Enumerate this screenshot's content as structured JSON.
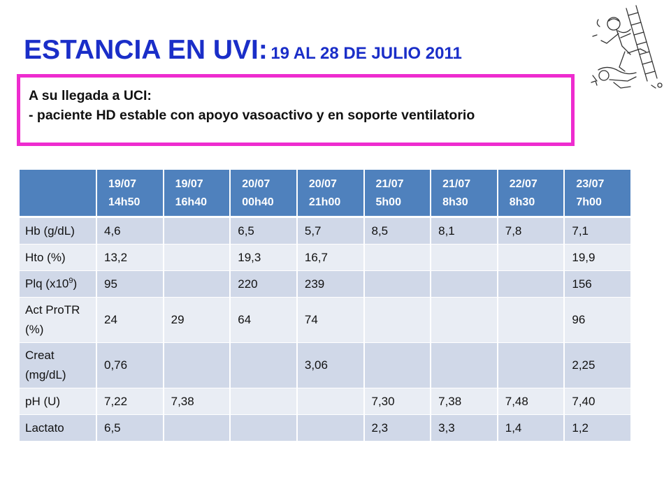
{
  "title": {
    "main": "ESTANCIA EN UVI:",
    "sub": "19 AL 28 DE JULIO 2011"
  },
  "cartoon_icon": "man-falling-off-ladder-illustration",
  "colors": {
    "title": "#1a2ec8",
    "box_border": "#ee2ccf",
    "header_bg": "#4f81bd",
    "row_dark": "#d0d8e8",
    "row_light": "#e9edf4"
  },
  "arrival_box": {
    "line1": "A su llegada a UCI:",
    "line2": "- paciente HD estable con apoyo vasoactivo y en soporte ventilatorio"
  },
  "table": {
    "columns": [
      {
        "date": "19/07",
        "time": "14h50"
      },
      {
        "date": "19/07",
        "time": "16h40"
      },
      {
        "date": "20/07",
        "time": "00h40"
      },
      {
        "date": "20/07",
        "time": "21h00"
      },
      {
        "date": "21/07",
        "time": "5h00"
      },
      {
        "date": "21/07",
        "time": "8h30"
      },
      {
        "date": "22/07",
        "time": "8h30"
      },
      {
        "date": "23/07",
        "time": "7h00"
      }
    ],
    "rows": [
      {
        "label": "Hb (g/dL)",
        "values": [
          "4,6",
          "",
          "6,5",
          "5,7",
          "8,5",
          "8,1",
          "7,8",
          "7,1"
        ]
      },
      {
        "label": "Hto (%)",
        "values": [
          "13,2",
          "",
          "19,3",
          "16,7",
          "",
          "",
          "",
          "19,9"
        ]
      },
      {
        "label_main": "Plq (x10",
        "label_sup": "9",
        "label_end": ")",
        "values": [
          "95",
          "",
          "220",
          "239",
          "",
          "",
          "",
          "156"
        ]
      },
      {
        "label": "Act ProTR (%)",
        "values": [
          "24",
          "29",
          "64",
          "74",
          "",
          "",
          "",
          "96"
        ]
      },
      {
        "label": "Creat (mg/dL)",
        "values": [
          "0,76",
          "",
          "",
          "3,06",
          "",
          "",
          "",
          "2,25"
        ]
      },
      {
        "label": "pH (U)",
        "values": [
          "7,22",
          "7,38",
          "",
          "",
          "7,30",
          "7,38",
          "7,48",
          "7,40"
        ]
      },
      {
        "label": "Lactato",
        "values": [
          "6,5",
          "",
          "",
          "",
          "2,3",
          "3,3",
          "1,4",
          "1,2"
        ]
      }
    ]
  }
}
